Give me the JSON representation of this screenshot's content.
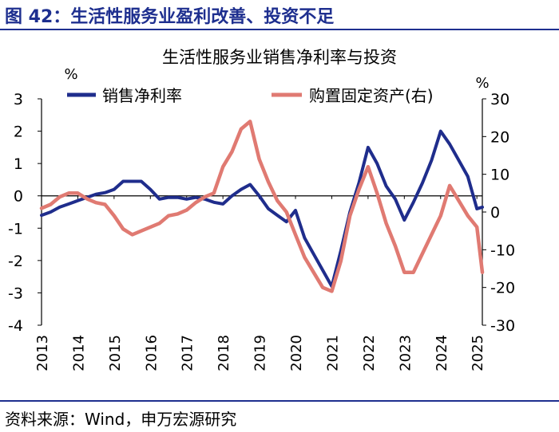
{
  "figure_title": "图 42：生活性服务业盈利改善、投资不足",
  "source": "资料来源：Wind，申万宏源研究",
  "colors": {
    "navy": "#1f2d8c",
    "salmon": "#e07a72",
    "title": "#1e2f8f"
  },
  "chart_data": {
    "type": "line",
    "title": "生活性服务业销售净利率与投资",
    "left_axis_unit": "%",
    "right_axis_unit": "%",
    "left_ylim": [
      -4,
      3
    ],
    "right_ylim": [
      -30,
      30
    ],
    "left_ticks": [
      "3",
      "2",
      "1",
      "0",
      "-1",
      "-2",
      "-3",
      "-4"
    ],
    "right_ticks": [
      "30",
      "20",
      "10",
      "0",
      "-10",
      "-20",
      "-30"
    ],
    "xlim": [
      2013,
      2025.15
    ],
    "x_tick_labels": [
      "2013",
      "2014",
      "2015",
      "2016",
      "2017",
      "2018",
      "2019",
      "2020",
      "2021",
      "2022",
      "2023",
      "2024",
      "2025"
    ],
    "series": [
      {
        "name": "销售净利率",
        "axis": "left",
        "color": "#1f2d8c",
        "x": [
          2013.0,
          2013.25,
          2013.5,
          2013.75,
          2014.0,
          2014.25,
          2014.5,
          2014.75,
          2015.0,
          2015.25,
          2015.5,
          2015.75,
          2016.0,
          2016.25,
          2016.5,
          2016.75,
          2017.0,
          2017.25,
          2017.5,
          2017.75,
          2018.0,
          2018.25,
          2018.5,
          2018.75,
          2019.0,
          2019.25,
          2019.5,
          2019.75,
          2020.0,
          2020.25,
          2020.5,
          2020.75,
          2021.0,
          2021.25,
          2021.5,
          2021.75,
          2022.0,
          2022.25,
          2022.5,
          2022.75,
          2023.0,
          2023.25,
          2023.5,
          2023.75,
          2024.0,
          2024.25,
          2024.5,
          2024.75,
          2025.0,
          2025.15
        ],
        "values": [
          -0.6,
          -0.5,
          -0.35,
          -0.25,
          -0.15,
          -0.05,
          0.05,
          0.1,
          0.2,
          0.45,
          0.45,
          0.45,
          0.2,
          -0.1,
          -0.05,
          -0.05,
          -0.1,
          -0.05,
          -0.1,
          -0.2,
          -0.25,
          0.0,
          0.2,
          0.35,
          0.0,
          -0.4,
          -0.6,
          -0.8,
          -0.45,
          -1.3,
          -1.8,
          -2.3,
          -2.8,
          -1.7,
          -0.5,
          0.4,
          1.5,
          1.0,
          0.3,
          -0.1,
          -0.75,
          -0.2,
          0.4,
          1.1,
          2.0,
          1.6,
          1.1,
          0.6,
          -0.4,
          -0.35
        ]
      },
      {
        "name": "购置固定资产(右)",
        "axis": "right",
        "color": "#e07a72",
        "x": [
          2013.0,
          2013.25,
          2013.5,
          2013.75,
          2014.0,
          2014.25,
          2014.5,
          2014.75,
          2015.0,
          2015.25,
          2015.5,
          2015.75,
          2016.0,
          2016.25,
          2016.5,
          2016.75,
          2017.0,
          2017.25,
          2017.5,
          2017.75,
          2018.0,
          2018.25,
          2018.5,
          2018.75,
          2019.0,
          2019.25,
          2019.5,
          2019.75,
          2020.0,
          2020.25,
          2020.5,
          2020.75,
          2021.0,
          2021.25,
          2021.5,
          2021.75,
          2022.0,
          2022.25,
          2022.5,
          2022.75,
          2023.0,
          2023.25,
          2023.5,
          2023.75,
          2024.0,
          2024.25,
          2024.5,
          2024.75,
          2025.0,
          2025.15
        ],
        "values": [
          1.0,
          2.0,
          4.0,
          5.0,
          5.0,
          3.5,
          2.5,
          2.0,
          -1.0,
          -4.5,
          -6.0,
          -5.0,
          -4.0,
          -3.0,
          -1.0,
          -0.5,
          0.5,
          2.5,
          4.0,
          5.0,
          12.0,
          16.0,
          22.0,
          24.0,
          14.0,
          8.0,
          3.0,
          0.0,
          -6.0,
          -12.0,
          -16.0,
          -20.0,
          -21.0,
          -13.0,
          -1.0,
          6.0,
          12.0,
          5.0,
          -3.0,
          -9.0,
          -16.0,
          -16.0,
          -11.0,
          -6.0,
          -1.0,
          7.0,
          3.0,
          -1.0,
          -4.0,
          -16.0
        ]
      }
    ]
  }
}
